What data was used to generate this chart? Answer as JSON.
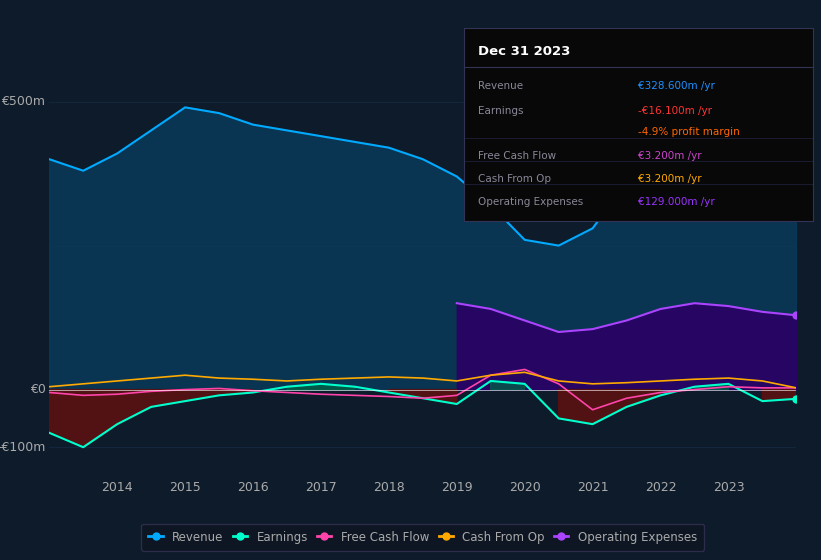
{
  "bg_color": "#0d1b2a",
  "plot_bg": "#0d1b2a",
  "years": [
    2013.0,
    2013.5,
    2014.0,
    2014.5,
    2015.0,
    2015.5,
    2016.0,
    2016.5,
    2017.0,
    2017.5,
    2018.0,
    2018.5,
    2019.0,
    2019.5,
    2020.0,
    2020.5,
    2021.0,
    2021.5,
    2022.0,
    2022.5,
    2023.0,
    2023.5,
    2024.0
  ],
  "revenue": [
    400,
    380,
    410,
    450,
    490,
    480,
    460,
    450,
    440,
    430,
    420,
    400,
    370,
    320,
    260,
    250,
    280,
    360,
    430,
    450,
    380,
    340,
    328
  ],
  "earnings": [
    -75,
    -100,
    -60,
    -30,
    -20,
    -10,
    -5,
    5,
    10,
    5,
    -5,
    -15,
    -25,
    15,
    10,
    -50,
    -60,
    -30,
    -10,
    5,
    10,
    -20,
    -16
  ],
  "free_cash_flow": [
    -5,
    -10,
    -8,
    -3,
    0,
    2,
    -2,
    -5,
    -8,
    -10,
    -12,
    -15,
    -10,
    25,
    35,
    10,
    -35,
    -15,
    -5,
    0,
    5,
    3,
    3
  ],
  "cash_from_op": [
    5,
    10,
    15,
    20,
    25,
    20,
    18,
    15,
    18,
    20,
    22,
    20,
    15,
    25,
    30,
    15,
    10,
    12,
    15,
    18,
    20,
    15,
    3
  ],
  "op_expenses_years": [
    2019.0,
    2019.5,
    2020.0,
    2020.5,
    2021.0,
    2021.5,
    2022.0,
    2022.5,
    2023.0,
    2023.5,
    2024.0
  ],
  "op_expenses": [
    150,
    140,
    120,
    100,
    105,
    120,
    140,
    150,
    145,
    135,
    129
  ],
  "revenue_color": "#00aaff",
  "revenue_fill": "#0a3a5a",
  "earnings_color": "#00ffcc",
  "fcf_color": "#ff44aa",
  "cfo_color": "#ffaa00",
  "opex_color": "#aa44ff",
  "grid_color": "#1a3a5a",
  "text_color": "#aaaaaa",
  "legend_bg": "#0d1520",
  "legend_border": "#333355",
  "ylim": [
    -150,
    550
  ],
  "ytick_labels": [
    "-€100m",
    "€0",
    "€500m"
  ],
  "box_title": "Dec 31 2023",
  "box_rows": [
    {
      "label": "Revenue",
      "value": "€328.600m /yr",
      "value_color": "#1e90ff"
    },
    {
      "label": "Earnings",
      "value": "-€16.100m /yr",
      "value_color": "#ff3333"
    },
    {
      "label": "",
      "value": "-4.9% profit margin",
      "value_color": "#ff6600"
    },
    {
      "label": "Free Cash Flow",
      "value": "€3.200m /yr",
      "value_color": "#cc44cc"
    },
    {
      "label": "Cash From Op",
      "value": "€3.200m /yr",
      "value_color": "#ffaa00"
    },
    {
      "label": "Operating Expenses",
      "value": "€129.000m /yr",
      "value_color": "#9933ff"
    }
  ]
}
